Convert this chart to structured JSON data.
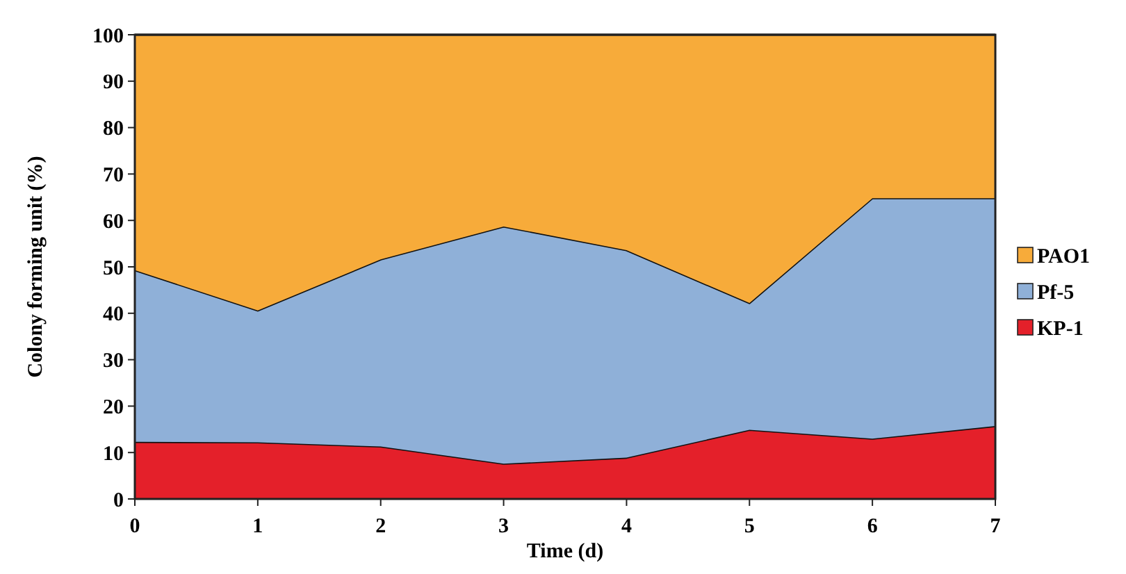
{
  "chart_data": {
    "type": "area",
    "stacked": true,
    "xlabel": "Time (d)",
    "ylabel": "Colony forming unit (%)",
    "x": [
      0,
      1,
      2,
      3,
      4,
      5,
      6,
      7
    ],
    "xlim": [
      0,
      7
    ],
    "xticks": [
      0,
      1,
      2,
      3,
      4,
      5,
      6,
      7
    ],
    "ylim": [
      0,
      100
    ],
    "yticks": [
      0,
      10,
      20,
      30,
      40,
      50,
      60,
      70,
      80,
      90,
      100
    ],
    "legend": "right",
    "grid": false,
    "series": [
      {
        "name": "KP-1",
        "color": "#e4202a",
        "values": [
          12.3,
          12.2,
          11.3,
          7.6,
          8.9,
          14.9,
          13.0,
          15.7
        ]
      },
      {
        "name": "Pf-5",
        "color": "#8fb0d8",
        "values": [
          37.0,
          28.4,
          40.3,
          51.1,
          44.7,
          27.3,
          51.8,
          49.1
        ]
      },
      {
        "name": "PAO1",
        "color": "#f7ab3a",
        "values": [
          50.7,
          59.4,
          48.4,
          41.3,
          46.4,
          57.8,
          35.2,
          35.2
        ]
      }
    ]
  }
}
